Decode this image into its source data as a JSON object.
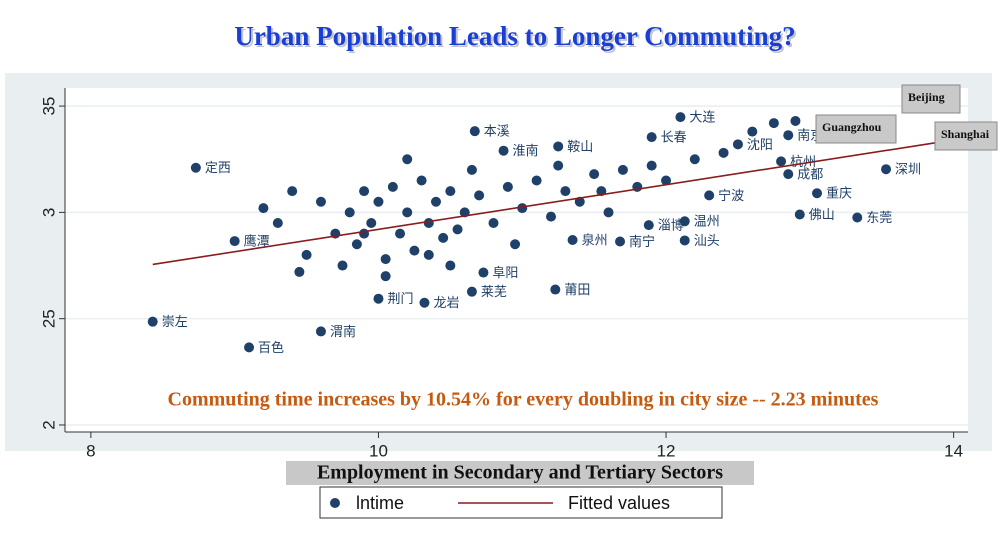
{
  "chart_data": {
    "type": "scatter",
    "title": "Urban Population Leads to Longer Commuting?",
    "annotation": "Commuting time increases by 10.54% for every doubling in city size -- 2.23 minutes",
    "xlabel": "Employment in Secondary and Tertiary Sectors",
    "xlim": [
      7.82,
      14.1
    ],
    "ylim": [
      1.967,
      3.585
    ],
    "xticks": [
      8,
      10,
      12,
      14
    ],
    "yticks": [
      {
        "value": 3.5,
        "label": "35"
      },
      3,
      {
        "value": 2.5,
        "label": "25"
      },
      2
    ],
    "grid": true,
    "callouts": [
      "Beijing",
      "Guangzhou",
      "Shanghai"
    ],
    "series": [
      {
        "name": "lntime",
        "type": "scatter",
        "color": "#1f4068",
        "x": [
          8.43,
          9.1,
          9.6,
          8.73,
          9.0,
          10.67,
          12.1,
          13.53,
          13.05,
          12.93,
          13.33,
          12.13,
          12.13,
          11.68,
          11.35,
          11.23,
          10.65,
          10.32,
          10.0,
          10.73,
          12.3,
          12.85,
          12.85,
          12.5,
          11.9,
          12.8,
          11.88,
          11.25,
          10.87,
          12.75,
          12.9,
          12.6,
          9.3,
          9.4,
          9.5,
          9.6,
          9.7,
          9.8,
          9.85,
          9.9,
          9.95,
          10.0,
          10.05,
          10.1,
          10.15,
          10.2,
          10.25,
          10.3,
          10.35,
          10.4,
          10.45,
          10.5,
          10.55,
          10.6,
          10.7,
          10.8,
          10.9,
          11.0,
          11.1,
          11.2,
          11.3,
          11.4,
          11.5,
          11.6,
          11.7,
          11.8,
          11.9,
          12.0,
          12.2,
          12.4,
          9.2,
          9.45,
          9.75,
          10.05,
          10.35,
          10.65,
          10.95,
          11.25,
          11.55,
          9.9,
          10.2,
          10.5
        ],
        "values": [
          2.486,
          2.365,
          2.44,
          3.21,
          2.865,
          3.382,
          3.448,
          3.203,
          3.09,
          2.99,
          2.976,
          2.958,
          2.868,
          2.863,
          2.87,
          2.637,
          2.627,
          2.575,
          2.594,
          2.717,
          3.08,
          3.18,
          3.363,
          3.32,
          3.354,
          3.24,
          2.94,
          3.31,
          3.29,
          3.42,
          3.43,
          3.38,
          2.95,
          3.1,
          2.8,
          3.05,
          2.9,
          3.0,
          2.85,
          3.1,
          2.95,
          3.05,
          2.78,
          3.12,
          2.9,
          3.0,
          2.82,
          3.15,
          2.95,
          3.05,
          2.88,
          3.1,
          2.92,
          3.0,
          3.08,
          2.95,
          3.12,
          3.02,
          3.15,
          2.98,
          3.1,
          3.05,
          3.18,
          3.0,
          3.2,
          3.12,
          3.22,
          3.15,
          3.25,
          3.28,
          3.02,
          2.72,
          2.75,
          2.7,
          2.8,
          3.2,
          2.85,
          3.22,
          3.1,
          2.9,
          3.25,
          2.75
        ],
        "labels": [
          "崇左",
          "百色",
          "渭南",
          "定西",
          "鹰潭",
          "本溪",
          "大连",
          "深圳",
          "重庆",
          "佛山",
          "东莞",
          "温州",
          "汕头",
          "南宁",
          "泉州",
          "莆田",
          "莱芜",
          "龙岩",
          "荆门",
          "阜阳",
          "宁波",
          "成都",
          "南京",
          "沈阳",
          "长春",
          "杭州",
          "淄博",
          "鞍山",
          "淮南",
          null,
          null,
          null,
          null,
          null,
          null,
          null,
          null,
          null,
          null,
          null,
          null,
          null,
          null,
          null,
          null,
          null,
          null,
          null,
          null,
          null,
          null,
          null,
          null,
          null,
          null,
          null,
          null,
          null,
          null,
          null,
          null,
          null,
          null,
          null,
          null,
          null,
          null,
          null,
          null,
          null,
          null,
          null,
          null,
          null,
          null,
          null,
          null,
          null,
          null,
          null,
          null,
          null
        ]
      },
      {
        "name": "Fitted values",
        "type": "line",
        "color": "#8b1c1c",
        "x": [
          8.43,
          13.9
        ],
        "values": [
          2.755,
          3.33
        ]
      }
    ]
  }
}
